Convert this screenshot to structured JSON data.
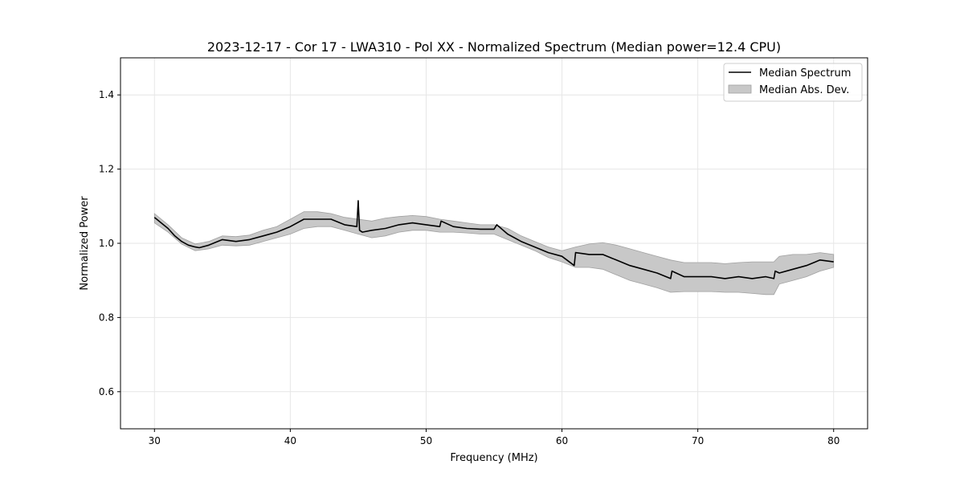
{
  "chart_data": {
    "type": "line",
    "title": "2023-12-17 - Cor 17 - LWA310 - Pol XX - Normalized Spectrum (Median power=12.4 CPU)",
    "xlabel": "Frequency (MHz)",
    "ylabel": "Normalized Power",
    "xlim": [
      27.5,
      82.5
    ],
    "ylim": [
      0.5,
      1.5
    ],
    "xticks": [
      30,
      40,
      50,
      60,
      70,
      80
    ],
    "yticks": [
      0.6,
      0.8,
      1.0,
      1.2,
      1.4
    ],
    "xtick_labels": [
      "30",
      "40",
      "50",
      "60",
      "70",
      "80"
    ],
    "ytick_labels": [
      "0.6",
      "0.8",
      "1.0",
      "1.2",
      "1.4"
    ],
    "grid": true,
    "legend_position": "top-right",
    "legend": [
      "Median Spectrum",
      "Median Abs. Dev."
    ],
    "colors": {
      "line": "#000000",
      "band": "#c8c8c8",
      "band_edge": "#a0a0a0",
      "grid": "#e6e6e6"
    },
    "series": [
      {
        "name": "Median Spectrum",
        "x": [
          30.0,
          30.5,
          31.0,
          31.5,
          32.0,
          32.5,
          33.0,
          33.3,
          34.0,
          35.0,
          36.0,
          37.0,
          38.0,
          39.0,
          40.0,
          41.0,
          42.0,
          43.0,
          44.0,
          44.9,
          45.0,
          45.1,
          45.3,
          46.0,
          47.0,
          48.0,
          49.0,
          50.0,
          51.0,
          51.1,
          52.0,
          53.0,
          54.0,
          55.0,
          55.2,
          56.0,
          57.0,
          58.0,
          59.0,
          60.0,
          60.9,
          61.0,
          62.0,
          63.0,
          64.0,
          65.0,
          66.0,
          67.0,
          68.0,
          68.1,
          69.0,
          70.0,
          71.0,
          72.0,
          73.0,
          74.0,
          75.0,
          75.6,
          75.7,
          76.0,
          77.0,
          78.0,
          79.0,
          80.0
        ],
        "y": [
          1.07,
          1.055,
          1.04,
          1.02,
          1.005,
          0.995,
          0.99,
          0.988,
          0.995,
          1.01,
          1.005,
          1.01,
          1.02,
          1.03,
          1.045,
          1.065,
          1.065,
          1.065,
          1.05,
          1.045,
          1.115,
          1.035,
          1.03,
          1.035,
          1.04,
          1.05,
          1.055,
          1.05,
          1.045,
          1.06,
          1.045,
          1.04,
          1.038,
          1.038,
          1.05,
          1.025,
          1.005,
          0.99,
          0.975,
          0.965,
          0.94,
          0.975,
          0.97,
          0.97,
          0.955,
          0.94,
          0.93,
          0.92,
          0.905,
          0.925,
          0.91,
          0.91,
          0.91,
          0.905,
          0.91,
          0.905,
          0.91,
          0.905,
          0.925,
          0.92,
          0.93,
          0.94,
          0.955,
          0.95
        ]
      },
      {
        "name": "Median Abs. Dev.",
        "x": [
          30.0,
          31.0,
          32.0,
          33.0,
          34.0,
          35.0,
          36.0,
          37.0,
          38.0,
          39.0,
          40.0,
          41.0,
          42.0,
          43.0,
          44.0,
          45.0,
          46.0,
          47.0,
          48.0,
          49.0,
          50.0,
          51.0,
          52.0,
          53.0,
          54.0,
          55.0,
          56.0,
          57.0,
          58.0,
          59.0,
          60.0,
          61.0,
          62.0,
          63.0,
          64.0,
          65.0,
          66.0,
          67.0,
          68.0,
          69.0,
          70.0,
          71.0,
          72.0,
          73.0,
          74.0,
          75.0,
          75.6,
          76.0,
          77.0,
          78.0,
          79.0,
          80.0
        ],
        "upper": [
          1.08,
          1.05,
          1.015,
          0.998,
          1.005,
          1.02,
          1.018,
          1.022,
          1.035,
          1.045,
          1.065,
          1.085,
          1.085,
          1.08,
          1.07,
          1.065,
          1.06,
          1.068,
          1.072,
          1.075,
          1.072,
          1.065,
          1.06,
          1.055,
          1.05,
          1.05,
          1.04,
          1.02,
          1.005,
          0.99,
          0.98,
          0.99,
          0.998,
          1.002,
          0.995,
          0.985,
          0.975,
          0.965,
          0.955,
          0.948,
          0.948,
          0.948,
          0.945,
          0.948,
          0.95,
          0.95,
          0.95,
          0.965,
          0.97,
          0.97,
          0.975,
          0.97
        ],
        "lower": [
          1.055,
          1.03,
          0.998,
          0.98,
          0.985,
          0.995,
          0.993,
          0.995,
          1.005,
          1.015,
          1.025,
          1.04,
          1.045,
          1.045,
          1.035,
          1.025,
          1.015,
          1.02,
          1.03,
          1.035,
          1.035,
          1.03,
          1.03,
          1.028,
          1.025,
          1.025,
          1.01,
          0.995,
          0.98,
          0.962,
          0.95,
          0.935,
          0.935,
          0.93,
          0.915,
          0.9,
          0.89,
          0.88,
          0.868,
          0.87,
          0.87,
          0.87,
          0.868,
          0.868,
          0.865,
          0.862,
          0.862,
          0.89,
          0.9,
          0.91,
          0.925,
          0.935
        ]
      }
    ]
  }
}
